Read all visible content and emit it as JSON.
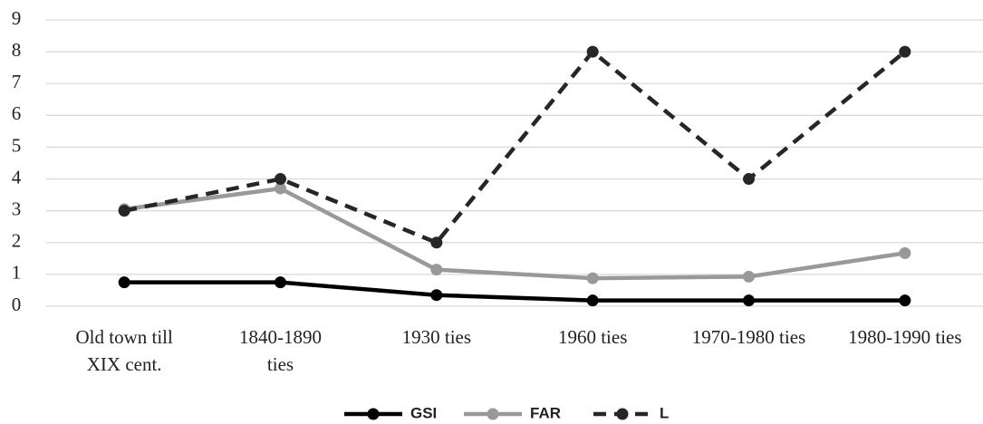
{
  "chart_data": {
    "type": "line",
    "categories": [
      "Old town  till\nXIX cent.",
      "1840-1890\nties",
      "1930 ties",
      "1960 ties",
      "1970-1980 ties",
      "1980-1990 ties"
    ],
    "series": [
      {
        "name": "GSI",
        "color": "#000000",
        "dashed": false,
        "values": [
          0.75,
          0.75,
          0.35,
          0.18,
          0.18,
          0.18
        ]
      },
      {
        "name": "FAR",
        "color": "#999999",
        "dashed": false,
        "values": [
          3.05,
          3.7,
          1.15,
          0.88,
          0.93,
          1.67
        ]
      },
      {
        "name": "L",
        "color": "#262626",
        "dashed": true,
        "values": [
          3,
          4,
          2,
          8,
          4,
          8
        ]
      }
    ],
    "ylim": [
      0,
      9
    ],
    "yticks": [
      0,
      1,
      2,
      3,
      4,
      5,
      6,
      7,
      8,
      9
    ],
    "grid": true,
    "legend": "bottom"
  }
}
